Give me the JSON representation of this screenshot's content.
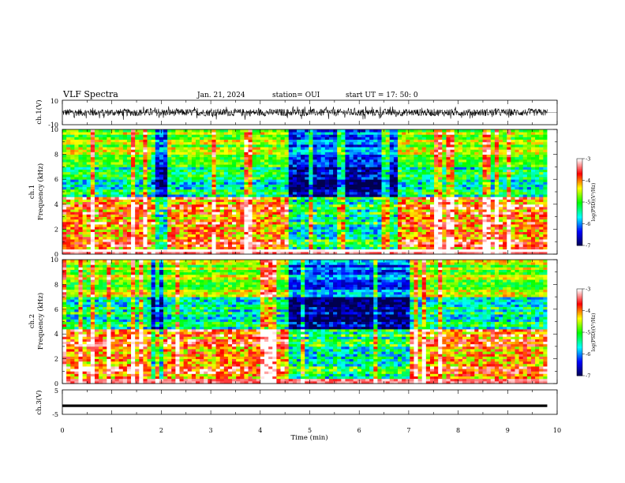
{
  "header": {
    "title": "VLF Spectra",
    "date": "Jan. 21, 2024",
    "station": "station= OUI",
    "start": "start  UT  =   17: 50: 0"
  },
  "chart_data": [
    {
      "type": "line",
      "name": "ch1_waveform",
      "ylabel": "ch.1(V)",
      "ylim": [
        -10,
        10
      ],
      "y_ticks": [
        "10",
        "-10"
      ],
      "xlim": [
        0,
        10
      ],
      "trace_extent_min": [
        0,
        9.8
      ],
      "amplitude_typical_V": [
        -3,
        3
      ],
      "amplitude_peak_V": [
        -6,
        5
      ]
    },
    {
      "type": "heatmap",
      "name": "ch1_spectrogram",
      "ylabel": "ch.1\nFrequency (kHz)",
      "xlim": [
        0,
        10
      ],
      "ylim": [
        0,
        10
      ],
      "y_ticks": [
        "0",
        "2",
        "4",
        "6",
        "8",
        "10"
      ],
      "data_extent_min": [
        0,
        9.8
      ],
      "colorbar": {
        "label": "log(PSD)(V²/Hz)",
        "range": [
          -7,
          -3
        ],
        "ticks": [
          "-3",
          "-4",
          "-5",
          "-6",
          "-7"
        ],
        "colors": [
          "#00004e",
          "#0000ff",
          "#00ffff",
          "#00ff00",
          "#ffff00",
          "#ff0000",
          "#ffffff"
        ]
      },
      "quiet_bands_min": [
        [
          1.75,
          2.05
        ],
        [
          4.55,
          6.7
        ]
      ],
      "band_edge_kHz": 4.6
    },
    {
      "type": "heatmap",
      "name": "ch2_spectrogram",
      "ylabel": "ch.2\nFrequency (kHz)",
      "xlim": [
        0,
        10
      ],
      "ylim": [
        0,
        10
      ],
      "y_ticks": [
        "0",
        "2",
        "4",
        "6",
        "8",
        "10"
      ],
      "data_extent_min": [
        0,
        9.8
      ],
      "colorbar": {
        "label": "log(PSD)(V²/Hz)",
        "range": [
          -7,
          -3
        ],
        "ticks": [
          "-3",
          "-4",
          "-5",
          "-6",
          "-7"
        ],
        "colors": [
          "#00004e",
          "#0000ff",
          "#00ffff",
          "#00ff00",
          "#ffff00",
          "#ff0000",
          "#ffffff"
        ]
      },
      "quiet_bands_min": [
        [
          1.75,
          2.0
        ],
        [
          4.5,
          7.0
        ]
      ],
      "band_edge_kHz": 4.3
    },
    {
      "type": "line",
      "name": "ch3_trace",
      "ylabel": "ch.3(V)",
      "ylim": [
        -5,
        5
      ],
      "y_ticks": [
        "5",
        "-5"
      ],
      "xlim": [
        0,
        10
      ],
      "value_V": -1.5,
      "extent_min": [
        0,
        9.8
      ]
    }
  ],
  "x_axis": {
    "label": "Time (min)",
    "ticks": [
      "0",
      "1",
      "2",
      "3",
      "4",
      "5",
      "6",
      "7",
      "8",
      "9",
      "10"
    ]
  }
}
